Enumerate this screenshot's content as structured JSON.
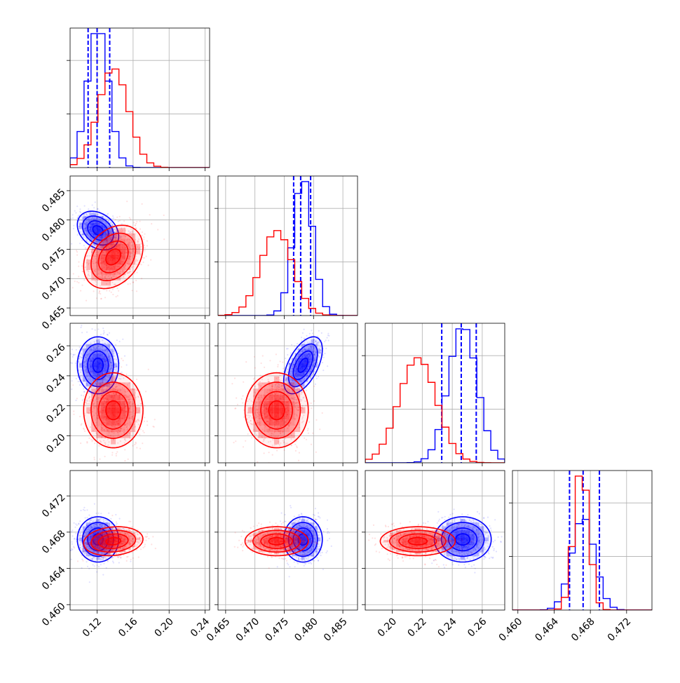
{
  "colors": {
    "series_a": "#0000ff",
    "series_b": "#ff0000",
    "grid": "#b0b0b0",
    "frame": "#000000"
  },
  "chart_data": {
    "type": "corner",
    "grid": true,
    "params": [
      {
        "range": [
          0.09,
          0.245
        ],
        "ticks": [
          0.12,
          0.16,
          0.2,
          0.24
        ],
        "tick_labels": [
          "0.12",
          "0.16",
          "0.20",
          "0.24"
        ]
      },
      {
        "range": [
          0.4637,
          0.4875
        ],
        "ticks": [
          0.465,
          0.47,
          0.475,
          0.48,
          0.485
        ],
        "tick_labels": [
          "0.465",
          "0.470",
          "0.475",
          "0.480",
          "0.485"
        ]
      },
      {
        "range": [
          0.182,
          0.275
        ],
        "ticks": [
          0.2,
          0.22,
          0.24,
          0.26
        ],
        "tick_labels": [
          "0.20",
          "0.22",
          "0.24",
          "0.26"
        ]
      },
      {
        "range": [
          0.4594,
          0.4748
        ],
        "ticks": [
          0.46,
          0.464,
          0.468,
          0.472
        ],
        "tick_labels": [
          "0.460",
          "0.464",
          "0.468",
          "0.472"
        ]
      }
    ],
    "series": [
      {
        "key": "blue",
        "color": "#0000ff",
        "mean": [
          0.121,
          0.4782,
          0.247,
          0.4672
        ],
        "std": [
          0.0115,
          0.00165,
          0.0095,
          0.00125
        ],
        "corr": [
          [
            0,
            1,
            -0.3
          ],
          [
            0,
            2,
            0.0
          ],
          [
            0,
            3,
            0.0
          ],
          [
            1,
            2,
            0.55
          ],
          [
            1,
            3,
            0.0
          ],
          [
            2,
            3,
            0.0
          ]
        ],
        "quantiles": [
          [
            0.11,
            0.12,
            0.134
          ],
          [
            0.4766,
            0.4778,
            0.4795
          ],
          [
            0.233,
            0.246,
            0.256
          ],
          [
            0.4657,
            0.4672,
            0.469
          ]
        ]
      },
      {
        "key": "red",
        "color": "#ff0000",
        "mean": [
          0.138,
          0.4737,
          0.217,
          0.467
        ],
        "std": [
          0.0165,
          0.0027,
          0.0125,
          0.0008
        ],
        "corr": [
          [
            0,
            1,
            0.3
          ],
          [
            0,
            2,
            0.0
          ],
          [
            0,
            3,
            0.15
          ],
          [
            1,
            2,
            0.0
          ],
          [
            1,
            3,
            0.0
          ],
          [
            2,
            3,
            0.0
          ]
        ]
      }
    ]
  }
}
